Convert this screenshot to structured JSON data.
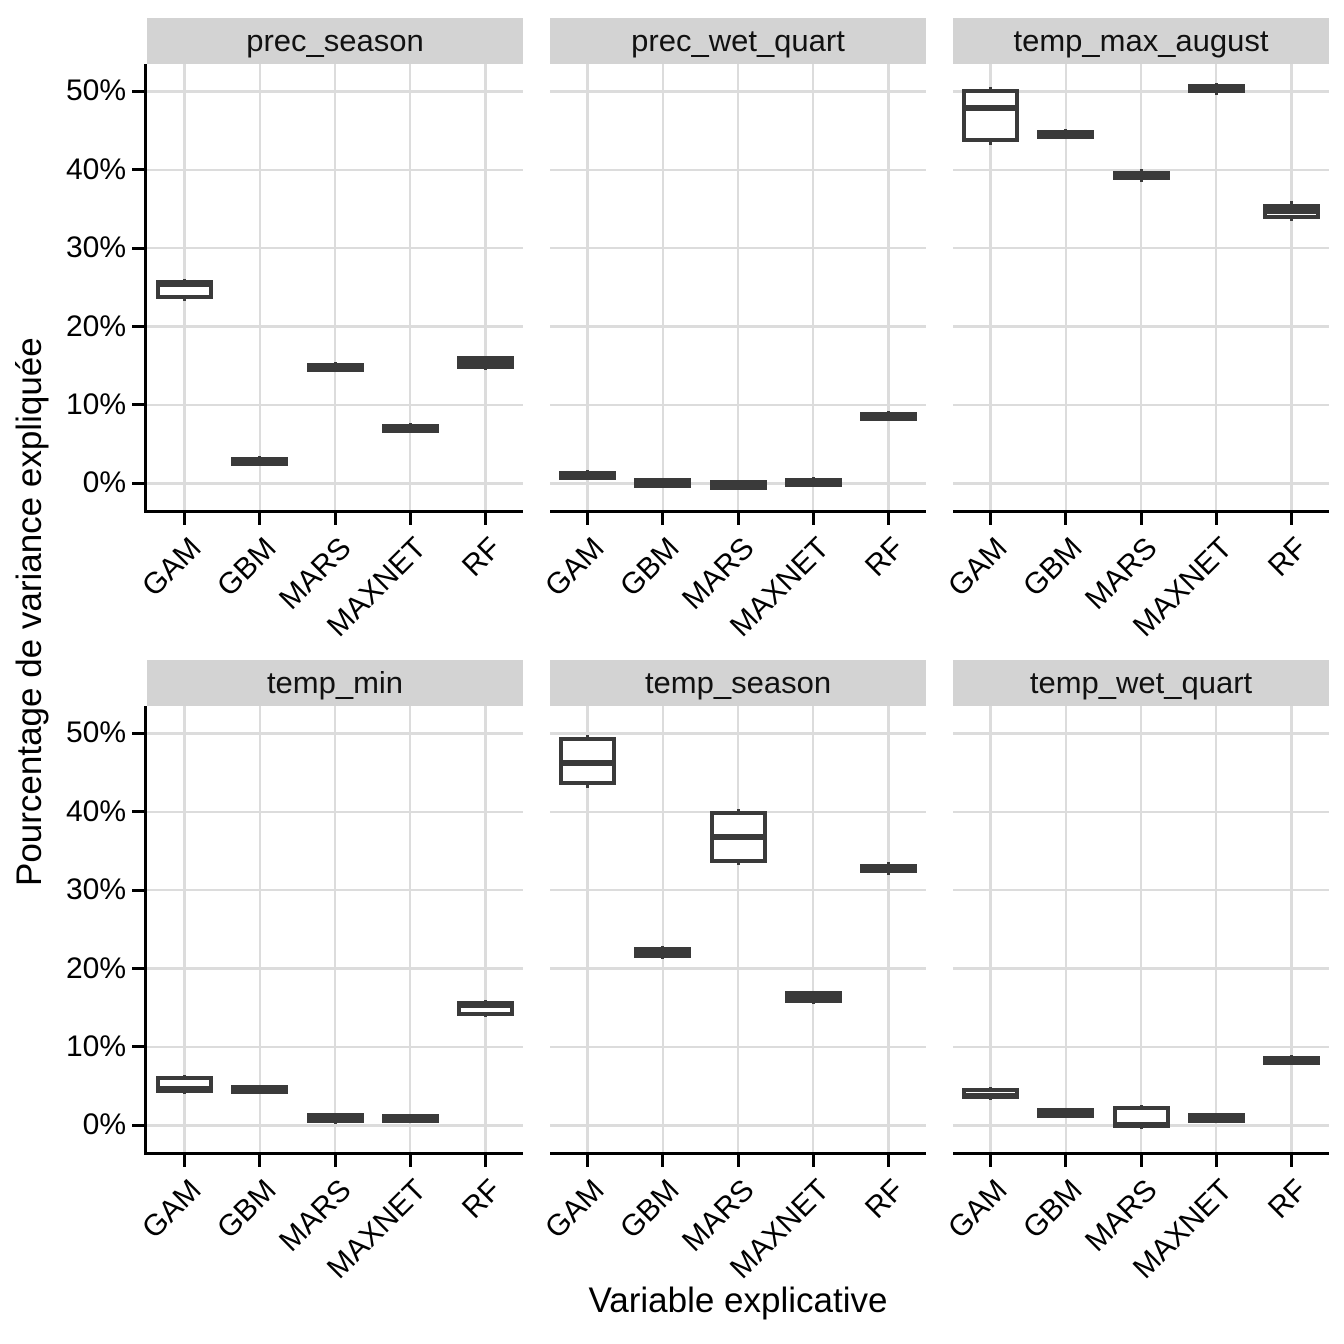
{
  "figure": {
    "y_axis_title": "Pourcentage de variance expliquée",
    "x_axis_title": "Variable explicative"
  },
  "colors": {
    "box_stroke": "#3A3A3A",
    "gridline": "#DCDCDC",
    "strip_background": "#D3D3D3",
    "axis": "#000000",
    "panel_background": "#FFFFFF"
  },
  "chart_data": {
    "type": "boxplot",
    "facet_layout": "2 rows x 3 cols",
    "categories": [
      "GAM",
      "GBM",
      "MARS",
      "MAXNET",
      "RF"
    ],
    "title": "",
    "xlabel": "Variable explicative",
    "ylabel": "Pourcentage de variance expliquée",
    "ytick_labels": [
      "0%",
      "10%",
      "20%",
      "30%",
      "40%",
      "50%"
    ],
    "yticks_percent": [
      0,
      10,
      20,
      30,
      40,
      50
    ],
    "ylim_percent": [
      -3.4,
      53.5
    ],
    "grid": "major-only",
    "legend": "none",
    "facets": [
      {
        "title": "prec_season",
        "stats": [
          {
            "model": "GAM",
            "min": 23.2,
            "q1": 23.5,
            "median": 25.4,
            "q3": 25.9,
            "max": 26.1
          },
          {
            "model": "GBM",
            "min": 2.3,
            "q1": 2.5,
            "median": 2.9,
            "q3": 3.4,
            "max": 3.5
          },
          {
            "model": "MARS",
            "min": 14.4,
            "q1": 14.6,
            "median": 15.0,
            "q3": 15.4,
            "max": 15.5
          },
          {
            "model": "MAXNET",
            "min": 6.4,
            "q1": 6.6,
            "median": 6.9,
            "q3": 7.6,
            "max": 7.7
          },
          {
            "model": "RF",
            "min": 14.4,
            "q1": 14.6,
            "median": 15.3,
            "q3": 16.2,
            "max": 16.3
          }
        ]
      },
      {
        "title": "prec_wet_quart",
        "stats": [
          {
            "model": "GAM",
            "min": 0.8,
            "q1": 0.9,
            "median": 1.2,
            "q3": 1.6,
            "max": 1.7
          },
          {
            "model": "GBM",
            "min": -0.2,
            "q1": -0.1,
            "median": 0.25,
            "q3": 0.6,
            "max": 0.7
          },
          {
            "model": "MARS",
            "min": -0.3,
            "q1": -0.2,
            "median": 0.05,
            "q3": 0.3,
            "max": 0.4
          },
          {
            "model": "MAXNET",
            "min": -0.1,
            "q1": 0.0,
            "median": 0.3,
            "q3": 0.65,
            "max": 0.75
          },
          {
            "model": "RF",
            "min": 8.1,
            "q1": 8.2,
            "median": 8.7,
            "q3": 9.1,
            "max": 9.2
          }
        ]
      },
      {
        "title": "temp_max_august",
        "stats": [
          {
            "model": "GAM",
            "min": 43.2,
            "q1": 43.6,
            "median": 47.9,
            "q3": 50.3,
            "max": 50.6
          },
          {
            "model": "GBM",
            "min": 44.1,
            "q1": 44.2,
            "median": 44.7,
            "q3": 45.1,
            "max": 45.2
          },
          {
            "model": "MARS",
            "min": 38.5,
            "q1": 38.7,
            "median": 39.2,
            "q3": 39.9,
            "max": 40.1
          },
          {
            "model": "MAXNET",
            "min": 49.6,
            "q1": 49.8,
            "median": 50.5,
            "q3": 51.0,
            "max": 51.1
          },
          {
            "model": "RF",
            "min": 33.5,
            "q1": 33.7,
            "median": 34.8,
            "q3": 35.7,
            "max": 36.0
          }
        ]
      },
      {
        "title": "temp_min",
        "stats": [
          {
            "model": "GAM",
            "min": 4.0,
            "q1": 4.1,
            "median": 4.7,
            "q3": 6.3,
            "max": 6.4
          },
          {
            "model": "GBM",
            "min": 4.3,
            "q1": 4.4,
            "median": 4.8,
            "q3": 5.1,
            "max": 5.2
          },
          {
            "model": "MARS",
            "min": 0.2,
            "q1": 0.3,
            "median": 1.2,
            "q3": 1.5,
            "max": 1.6
          },
          {
            "model": "MAXNET",
            "min": 0.5,
            "q1": 0.6,
            "median": 1.0,
            "q3": 1.4,
            "max": 1.5
          },
          {
            "model": "RF",
            "min": 13.8,
            "q1": 13.9,
            "median": 15.4,
            "q3": 15.9,
            "max": 16.0
          }
        ]
      },
      {
        "title": "temp_season",
        "stats": [
          {
            "model": "GAM",
            "min": 43.0,
            "q1": 43.4,
            "median": 46.2,
            "q3": 49.6,
            "max": 49.8
          },
          {
            "model": "GBM",
            "min": 21.2,
            "q1": 21.4,
            "median": 21.9,
            "q3": 22.7,
            "max": 22.9
          },
          {
            "model": "MARS",
            "min": 33.2,
            "q1": 33.5,
            "median": 36.8,
            "q3": 40.1,
            "max": 40.4
          },
          {
            "model": "MAXNET",
            "min": 15.5,
            "q1": 15.6,
            "median": 16.3,
            "q3": 17.1,
            "max": 17.2
          },
          {
            "model": "RF",
            "min": 32.0,
            "q1": 32.2,
            "median": 32.8,
            "q3": 33.3,
            "max": 33.6
          }
        ]
      },
      {
        "title": "temp_wet_quart",
        "stats": [
          {
            "model": "GAM",
            "min": 3.2,
            "q1": 3.3,
            "median": 3.7,
            "q3": 4.8,
            "max": 4.9
          },
          {
            "model": "GBM",
            "min": 1.3,
            "q1": 1.4,
            "median": 1.8,
            "q3": 2.1,
            "max": 2.2
          },
          {
            "model": "MARS",
            "min": -0.5,
            "q1": -0.4,
            "median": 0.1,
            "q3": 2.5,
            "max": 2.6
          },
          {
            "model": "MAXNET",
            "min": 0.7,
            "q1": 0.8,
            "median": 1.2,
            "q3": 1.5,
            "max": 1.6
          },
          {
            "model": "RF",
            "min": 8.0,
            "q1": 8.1,
            "median": 8.5,
            "q3": 8.9,
            "max": 9.0
          }
        ]
      }
    ]
  }
}
